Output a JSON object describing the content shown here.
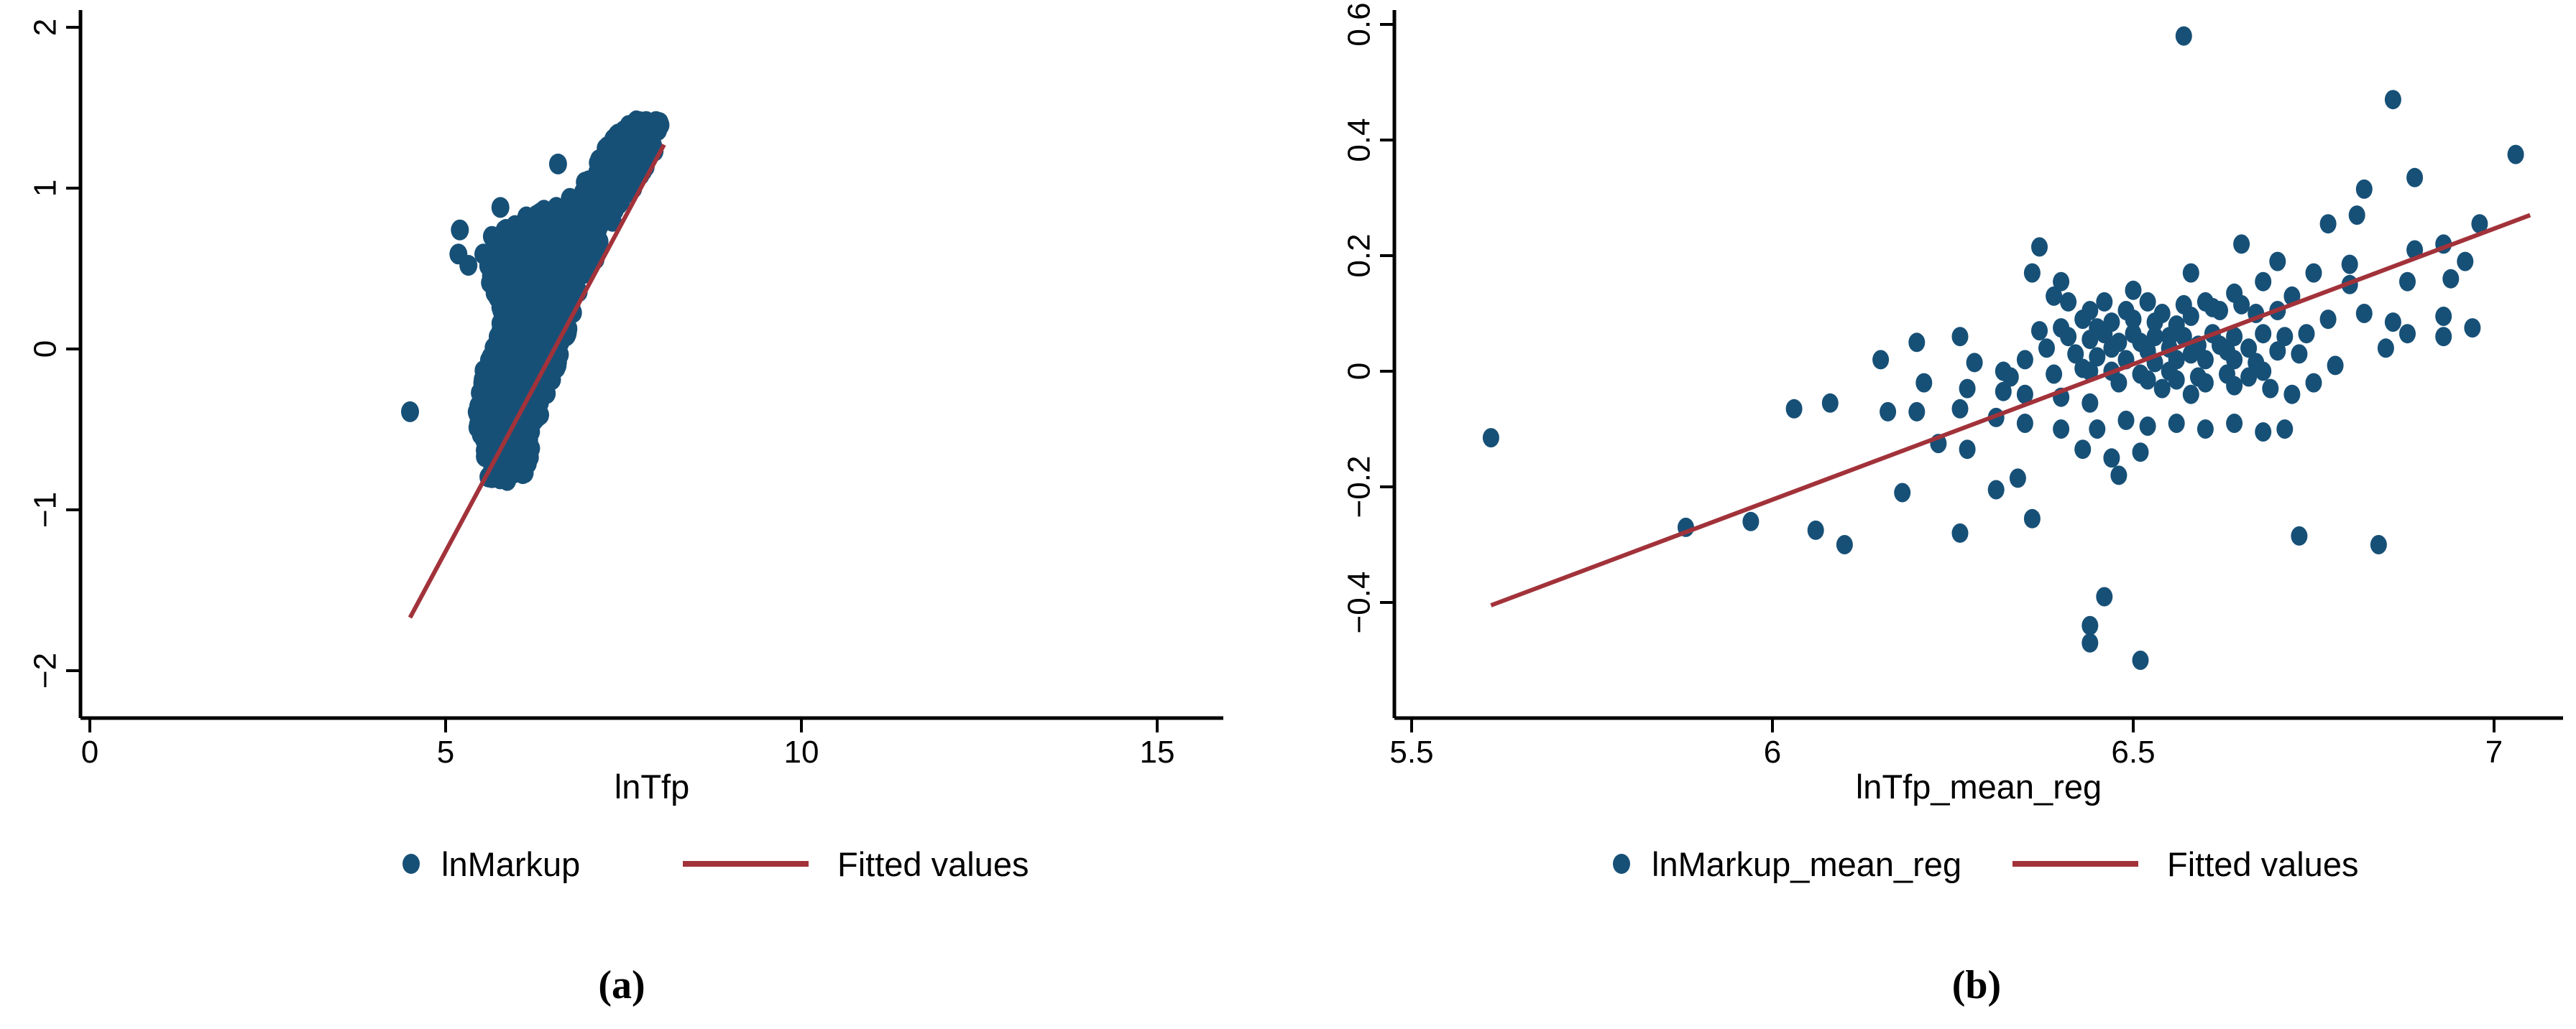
{
  "figure": {
    "captions": [
      "(a)",
      "(b)"
    ],
    "background": "#ffffff"
  },
  "colors": {
    "dot": "#175077",
    "fit_line": "#a2323a",
    "axis": "#000000"
  },
  "chart_data": [
    {
      "type": "scatter",
      "panel": "a",
      "title": "",
      "xlabel": "lnTfp",
      "ylabel": "",
      "legend": [
        {
          "marker": "dot",
          "label": "lnMarkup"
        },
        {
          "marker": "line",
          "label": "Fitted values"
        }
      ],
      "legend_position": "bottom-center",
      "grid": false,
      "xlim": [
        0,
        15.9
      ],
      "ylim": [
        -2.3,
        2.12
      ],
      "xticks": [
        {
          "v": 0,
          "label": "0"
        },
        {
          "v": 5,
          "label": "5"
        },
        {
          "v": 10,
          "label": "10"
        },
        {
          "v": 15,
          "label": "15"
        }
      ],
      "yticks": [
        {
          "v": 2,
          "label": "2"
        },
        {
          "v": 1,
          "label": "1"
        },
        {
          "v": 0,
          "label": "0"
        },
        {
          "v": -1,
          "label": "−1"
        },
        {
          "v": -2,
          "label": "−2"
        }
      ],
      "fitted_line": {
        "x1": 4.5,
        "y1": -1.67,
        "x2": 8.07,
        "y2": 1.27
      },
      "cloud_note": "dense mass of thousands of overlapping points; envelope slices [y, x_min, x_max, n_points_in_band_above]",
      "cloud_slices": [
        [
          -0.82,
          5.62,
          6.1,
          30
        ],
        [
          -0.7,
          5.52,
          6.18,
          34
        ],
        [
          -0.6,
          5.48,
          6.22,
          36
        ],
        [
          -0.5,
          5.44,
          6.28,
          38
        ],
        [
          -0.4,
          5.42,
          6.35,
          40
        ],
        [
          -0.3,
          5.44,
          6.42,
          40
        ],
        [
          -0.2,
          5.5,
          6.5,
          42
        ],
        [
          -0.1,
          5.55,
          6.58,
          42
        ],
        [
          0.0,
          5.62,
          6.66,
          42
        ],
        [
          0.1,
          5.7,
          6.73,
          42
        ],
        [
          0.2,
          5.8,
          6.8,
          44
        ],
        [
          0.3,
          5.7,
          6.88,
          46
        ],
        [
          0.4,
          5.62,
          6.97,
          48
        ],
        [
          0.5,
          5.58,
          7.06,
          48
        ],
        [
          0.6,
          5.62,
          7.15,
          44
        ],
        [
          0.7,
          5.75,
          7.25,
          40
        ],
        [
          0.8,
          5.95,
          7.37,
          36
        ],
        [
          0.9,
          6.6,
          7.5,
          30
        ],
        [
          1.0,
          6.9,
          7.65,
          30
        ],
        [
          1.1,
          7.05,
          7.8,
          30
        ],
        [
          1.2,
          7.18,
          7.95,
          32
        ],
        [
          1.3,
          7.32,
          8.08,
          26
        ],
        [
          1.38,
          7.5,
          8.1,
          14
        ],
        [
          1.42,
          7.65,
          8.05,
          0
        ]
      ],
      "prng_seed": 20,
      "outliers": [
        [
          4.5,
          -0.39
        ],
        [
          5.2,
          0.74
        ],
        [
          5.18,
          0.59
        ],
        [
          5.32,
          0.52
        ],
        [
          5.53,
          0.59
        ],
        [
          5.65,
          0.7
        ],
        [
          5.77,
          0.88
        ],
        [
          6.25,
          0.81
        ],
        [
          6.4,
          0.85
        ],
        [
          6.58,
          1.15
        ],
        [
          5.65,
          -0.07
        ],
        [
          5.67,
          -0.45
        ]
      ]
    },
    {
      "type": "scatter",
      "panel": "b",
      "title": "",
      "xlabel": "lnTfp_mean_reg",
      "ylabel": "",
      "legend": [
        {
          "marker": "dot",
          "label": "lnMarkup_mean_reg"
        },
        {
          "marker": "line",
          "label": "Fitted values"
        }
      ],
      "legend_position": "bottom-center",
      "grid": false,
      "xlim": [
        5.46,
        7.1
      ],
      "ylim": [
        -0.6,
        0.63
      ],
      "xticks": [
        {
          "v": 5.5,
          "label": "5.5"
        },
        {
          "v": 6,
          "label": "6"
        },
        {
          "v": 6.5,
          "label": "6.5"
        },
        {
          "v": 7,
          "label": "7"
        }
      ],
      "yticks": [
        {
          "v": 0.6,
          "label": "0.6"
        },
        {
          "v": 0.4,
          "label": "0.4"
        },
        {
          "v": 0.2,
          "label": "0.2"
        },
        {
          "v": 0,
          "label": "0"
        },
        {
          "v": -0.2,
          "label": "−0.2"
        },
        {
          "v": -0.4,
          "label": "−0.4"
        }
      ],
      "fitted_line": {
        "x1": 5.61,
        "y1": -0.405,
        "x2": 7.05,
        "y2": 0.27
      },
      "points": [
        [
          6.57,
          0.58
        ],
        [
          6.86,
          0.47
        ],
        [
          7.03,
          0.375
        ],
        [
          6.89,
          0.335
        ],
        [
          6.82,
          0.315
        ],
        [
          6.81,
          0.27
        ],
        [
          6.77,
          0.255
        ],
        [
          6.98,
          0.255
        ],
        [
          6.37,
          0.215
        ],
        [
          6.65,
          0.22
        ],
        [
          6.7,
          0.19
        ],
        [
          6.93,
          0.22
        ],
        [
          6.89,
          0.21
        ],
        [
          6.96,
          0.19
        ],
        [
          6.36,
          0.17
        ],
        [
          6.4,
          0.155
        ],
        [
          6.68,
          0.155
        ],
        [
          6.75,
          0.17
        ],
        [
          6.8,
          0.185
        ],
        [
          6.8,
          0.15
        ],
        [
          6.88,
          0.155
        ],
        [
          6.94,
          0.16
        ],
        [
          6.39,
          0.13
        ],
        [
          6.5,
          0.14
        ],
        [
          6.58,
          0.17
        ],
        [
          6.64,
          0.135
        ],
        [
          6.72,
          0.13
        ],
        [
          6.41,
          0.12
        ],
        [
          6.46,
          0.12
        ],
        [
          6.52,
          0.12
        ],
        [
          6.57,
          0.115
        ],
        [
          6.6,
          0.12
        ],
        [
          6.65,
          0.115
        ],
        [
          6.7,
          0.105
        ],
        [
          6.44,
          0.105
        ],
        [
          6.49,
          0.105
        ],
        [
          6.54,
          0.1
        ],
        [
          6.62,
          0.105
        ],
        [
          6.67,
          0.1
        ],
        [
          6.77,
          0.09
        ],
        [
          6.82,
          0.1
        ],
        [
          6.86,
          0.085
        ],
        [
          6.61,
          0.11
        ],
        [
          6.58,
          0.095
        ],
        [
          6.56,
          0.08
        ],
        [
          6.45,
          0.075
        ],
        [
          6.4,
          0.075
        ],
        [
          6.37,
          0.07
        ],
        [
          6.93,
          0.095
        ],
        [
          6.97,
          0.075
        ],
        [
          6.43,
          0.09
        ],
        [
          6.47,
          0.085
        ],
        [
          6.5,
          0.09
        ],
        [
          6.53,
          0.085
        ],
        [
          6.44,
          0.055
        ],
        [
          6.48,
          0.05
        ],
        [
          6.52,
          0.035
        ],
        [
          6.55,
          0.04
        ],
        [
          6.59,
          0.045
        ],
        [
          6.63,
          0.035
        ],
        [
          6.66,
          0.04
        ],
        [
          6.7,
          0.035
        ],
        [
          6.73,
          0.03
        ],
        [
          6.46,
          0.065
        ],
        [
          6.5,
          0.065
        ],
        [
          6.53,
          0.06
        ],
        [
          6.57,
          0.06
        ],
        [
          6.61,
          0.065
        ],
        [
          6.64,
          0.06
        ],
        [
          6.68,
          0.065
        ],
        [
          6.71,
          0.06
        ],
        [
          6.74,
          0.065
        ],
        [
          6.85,
          0.04
        ],
        [
          6.88,
          0.065
        ],
        [
          6.47,
          0.04
        ],
        [
          6.51,
          0.05
        ],
        [
          6.55,
          0.06
        ],
        [
          6.58,
          0.03
        ],
        [
          6.62,
          0.045
        ],
        [
          6.26,
          0.06
        ],
        [
          6.2,
          0.05
        ],
        [
          6.15,
          0.02
        ],
        [
          6.28,
          0.015
        ],
        [
          6.42,
          0.03
        ],
        [
          6.45,
          0.025
        ],
        [
          6.49,
          0.02
        ],
        [
          6.53,
          0.015
        ],
        [
          6.56,
          0.02
        ],
        [
          6.6,
          0.02
        ],
        [
          6.64,
          0.02
        ],
        [
          6.67,
          0.015
        ],
        [
          6.78,
          0.01
        ],
        [
          6.41,
          0.06
        ],
        [
          6.38,
          0.04
        ],
        [
          6.35,
          0.02
        ],
        [
          6.32,
          0.0
        ],
        [
          6.39,
          -0.005
        ],
        [
          6.43,
          0.005
        ],
        [
          6.47,
          0.0
        ],
        [
          6.51,
          -0.005
        ],
        [
          6.55,
          0.0
        ],
        [
          6.59,
          -0.01
        ],
        [
          6.63,
          -0.005
        ],
        [
          6.66,
          -0.01
        ],
        [
          6.93,
          0.06
        ],
        [
          6.44,
          0.0
        ],
        [
          6.48,
          -0.02
        ],
        [
          6.52,
          -0.015
        ],
        [
          6.33,
          -0.01
        ],
        [
          6.21,
          -0.02
        ],
        [
          6.27,
          -0.03
        ],
        [
          6.32,
          -0.035
        ],
        [
          6.35,
          -0.04
        ],
        [
          6.4,
          -0.045
        ],
        [
          6.44,
          -0.055
        ],
        [
          6.54,
          -0.03
        ],
        [
          6.58,
          -0.04
        ],
        [
          6.69,
          -0.03
        ],
        [
          6.72,
          -0.04
        ],
        [
          6.75,
          -0.02
        ],
        [
          6.56,
          -0.015
        ],
        [
          6.6,
          -0.02
        ],
        [
          6.64,
          -0.025
        ],
        [
          6.68,
          0.0
        ],
        [
          6.08,
          -0.055
        ],
        [
          6.16,
          -0.07
        ],
        [
          6.2,
          -0.07
        ],
        [
          6.26,
          -0.065
        ],
        [
          6.31,
          -0.08
        ],
        [
          6.35,
          -0.09
        ],
        [
          6.4,
          -0.1
        ],
        [
          6.45,
          -0.1
        ],
        [
          6.49,
          -0.085
        ],
        [
          6.52,
          -0.095
        ],
        [
          6.56,
          -0.09
        ],
        [
          6.6,
          -0.1
        ],
        [
          6.64,
          -0.09
        ],
        [
          6.68,
          -0.105
        ],
        [
          6.71,
          -0.1
        ],
        [
          6.03,
          -0.065
        ],
        [
          5.61,
          -0.115
        ],
        [
          6.23,
          -0.125
        ],
        [
          6.27,
          -0.135
        ],
        [
          6.43,
          -0.135
        ],
        [
          6.47,
          -0.15
        ],
        [
          6.51,
          -0.14
        ],
        [
          6.48,
          -0.18
        ],
        [
          6.34,
          -0.185
        ],
        [
          6.31,
          -0.205
        ],
        [
          6.18,
          -0.21
        ],
        [
          6.36,
          -0.255
        ],
        [
          5.88,
          -0.27
        ],
        [
          5.97,
          -0.26
        ],
        [
          6.06,
          -0.275
        ],
        [
          6.1,
          -0.3
        ],
        [
          6.26,
          -0.28
        ],
        [
          6.73,
          -0.285
        ],
        [
          6.84,
          -0.3
        ],
        [
          6.46,
          -0.39
        ],
        [
          6.44,
          -0.44
        ],
        [
          6.44,
          -0.47
        ],
        [
          6.51,
          -0.5
        ]
      ]
    }
  ]
}
